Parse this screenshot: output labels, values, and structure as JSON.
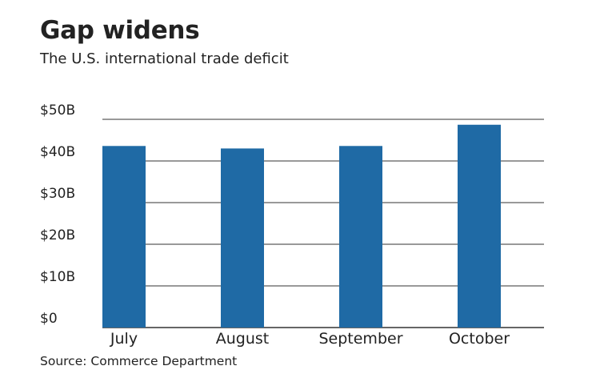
{
  "chart_data": {
    "type": "bar",
    "title": "Gap widens",
    "subtitle": "The U.S. international trade deficit",
    "source": "Source: Commerce Department",
    "categories": [
      "July",
      "August",
      "September",
      "October"
    ],
    "values": [
      43.6,
      43.0,
      43.6,
      48.7
    ],
    "ylim": [
      0,
      50
    ],
    "yticks": [
      0,
      10,
      20,
      30,
      40,
      50
    ],
    "ytick_labels": [
      "$0",
      "$10B",
      "$20B",
      "$30B",
      "$40B",
      "$50B"
    ],
    "xlabel": "",
    "ylabel": "",
    "grid": true,
    "bar_color": "#1f6aa5",
    "grid_color": "#333333",
    "text_color": "#222222"
  }
}
